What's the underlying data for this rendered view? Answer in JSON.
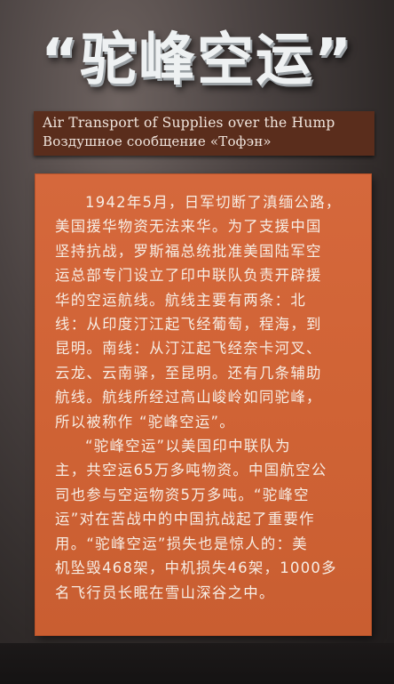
{
  "sign": {
    "title": "“驼峰空运”",
    "subtitle_en": "Air Transport of Supplies over the Hump",
    "subtitle_ru": "Воздушное сообщение «Тофэн»",
    "panel_lines": [
      "1942年5月，日军切断了滇缅公路，",
      "美国援华物资无法来华。为了支援中国",
      "坚持抗战，罗斯福总统批准美国陆军空",
      "运总部专门设立了印中联队负责开辟援",
      "华的空运航线。航线主要有两条：北",
      "线：从印度汀江起飞经葡萄，程海，到",
      "昆明。南线：从汀江起飞经奈卡河叉、",
      "云龙、云南驿，至昆明。还有几条辅助",
      "航线。航线所经过高山峻岭如同驼峰，",
      "所以被称作 “驼峰空运”。",
      "“驼峰空运”以美国印中联队为",
      "主，共空运65万多吨物资。中国航空公",
      "司也参与空运物资5万多吨。“驼峰空",
      "运”对在苦战中的中国抗战起了重要作",
      "用。“驼峰空运”损失也是惊人的：美",
      "机坠毁468架，中机损失46架，1000多",
      "名飞行员长眠在雪山深谷之中。"
    ]
  },
  "colors": {
    "panel": "#d06335",
    "band": "#5a2d1c",
    "title": "#eef1f2"
  }
}
